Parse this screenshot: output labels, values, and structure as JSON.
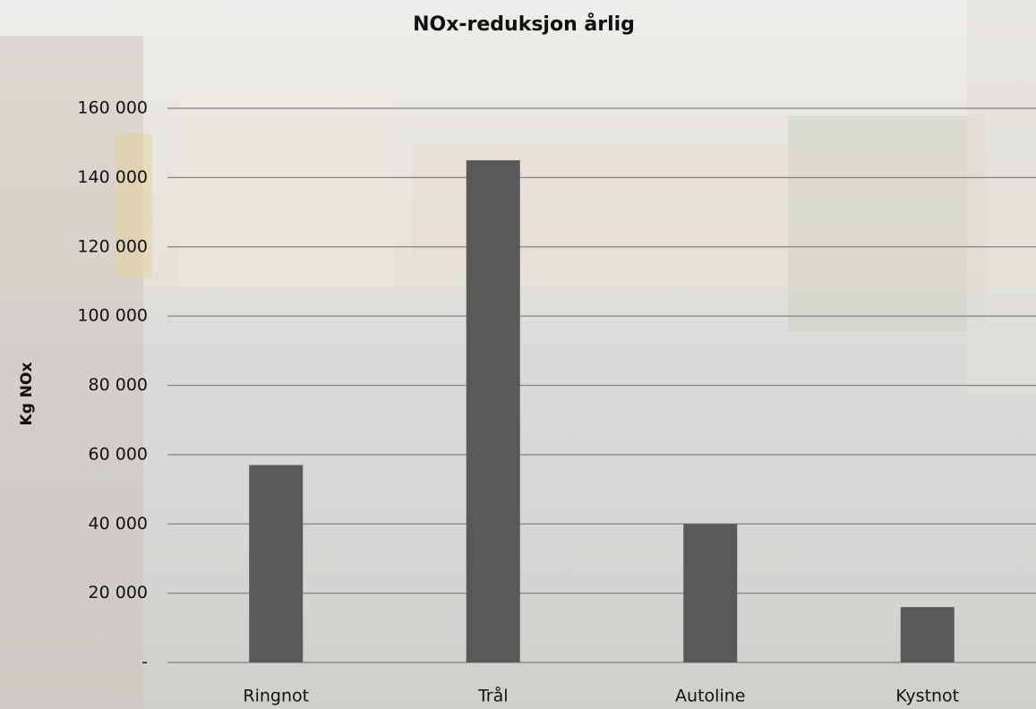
{
  "chart_data": {
    "type": "bar",
    "title": "NOx-reduksjon årlig",
    "y_label": "Kg NOx",
    "categories": [
      "Ringnot",
      "Trål",
      "Autoline",
      "Kystnot"
    ],
    "values": [
      57000,
      145000,
      40000,
      16000
    ],
    "color": "#595959",
    "ylim": [
      0,
      160000
    ],
    "yticks": [
      {
        "value": 0,
        "label": "-"
      },
      {
        "value": 20000,
        "label": "20 000"
      },
      {
        "value": 40000,
        "label": "40 000"
      },
      {
        "value": 60000,
        "label": "60 000"
      },
      {
        "value": 80000,
        "label": "80 000"
      },
      {
        "value": 100000,
        "label": "100 000"
      },
      {
        "value": 120000,
        "label": "120 000"
      },
      {
        "value": 140000,
        "label": "140 000"
      },
      {
        "value": 160000,
        "label": "160 000"
      }
    ],
    "grid": true
  }
}
